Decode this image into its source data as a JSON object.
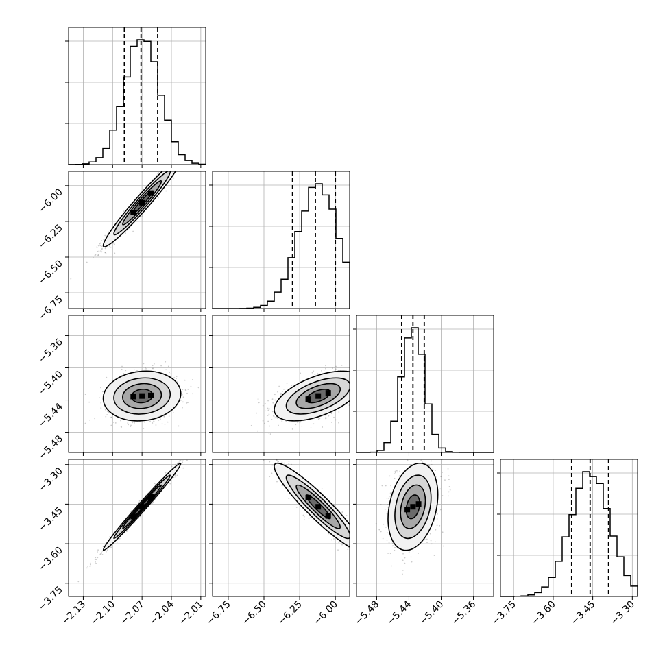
{
  "chart_data": {
    "type": "corner",
    "title": "",
    "parameters": [
      {
        "index": 0,
        "mean": -2.07,
        "sd": 0.018,
        "lim": [
          -2.145,
          -2.005
        ],
        "ticks": [
          -2.13,
          -2.1,
          -2.07,
          -2.04,
          -2.01
        ],
        "tick_labels": [
          "−2.13",
          "−2.10",
          "−2.07",
          "−2.04",
          "−2.01"
        ],
        "quantiles": [
          -2.088,
          -2.071,
          -2.054
        ]
      },
      {
        "index": 1,
        "mean": -6.12,
        "sd": 0.14,
        "lim": [
          -6.86,
          -5.9
        ],
        "ticks": [
          -6.75,
          -6.5,
          -6.25,
          -6.0
        ],
        "tick_labels": [
          "−6.75",
          "−6.50",
          "−6.25",
          "−6.00"
        ],
        "quantiles": [
          -6.3,
          -6.14,
          -6.0
        ]
      },
      {
        "index": 2,
        "mean": -5.435,
        "sd": 0.014,
        "lim": [
          -5.505,
          -5.335
        ],
        "ticks": [
          -5.48,
          -5.44,
          -5.4,
          -5.36
        ],
        "tick_labels": [
          "−5.48",
          "−5.44",
          "−5.40",
          "−5.36"
        ],
        "quantiles": [
          -5.449,
          -5.435,
          -5.421
        ]
      },
      {
        "index": 3,
        "mean": -3.46,
        "sd": 0.075,
        "lim": [
          -3.8,
          -3.28
        ],
        "ticks": [
          -3.75,
          -3.6,
          -3.45,
          -3.3
        ],
        "tick_labels": [
          "−3.75",
          "−3.60",
          "−3.45",
          "−3.30"
        ],
        "quantiles": [
          -3.53,
          -3.46,
          -3.39
        ]
      }
    ],
    "correlations": [
      [
        1.0,
        0.97,
        0.1,
        0.99
      ],
      [
        0.97,
        1.0,
        0.55,
        -0.93
      ],
      [
        0.1,
        0.55,
        1.0,
        0.28
      ],
      [
        0.99,
        -0.93,
        0.28,
        1.0
      ]
    ],
    "grid": true,
    "histogram_bins": 20,
    "scatter_samples_per_panel": 1200,
    "colors": {
      "hist": "#000000",
      "points": "#6e6e6e",
      "contour_levels": [
        "#f2f2f2",
        "#d6d6d6",
        "#a8a8a8",
        "#6a6a6a",
        "#000000"
      ]
    }
  }
}
